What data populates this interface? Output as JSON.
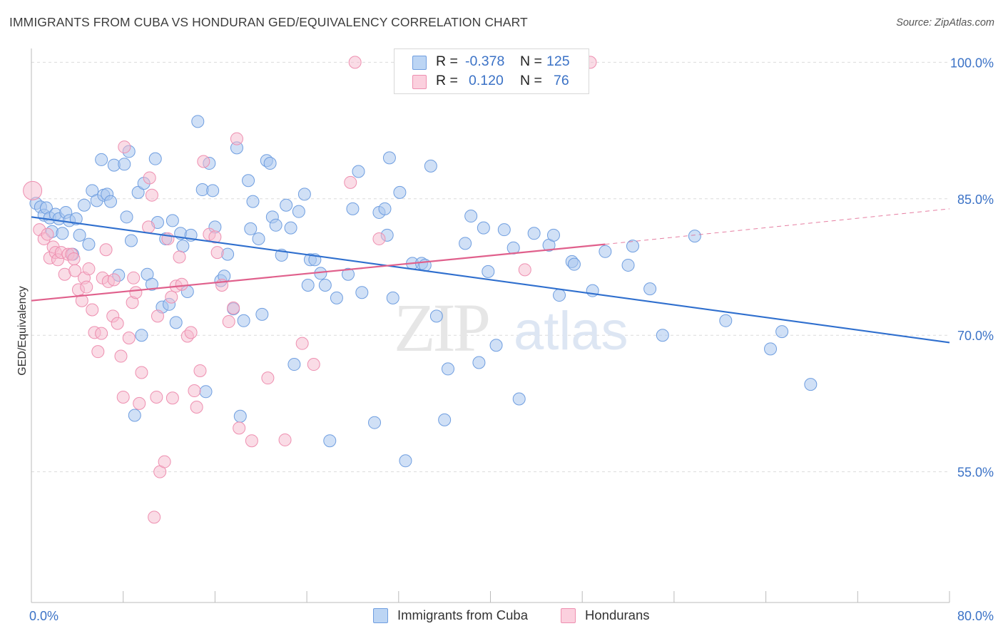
{
  "title": "IMMIGRANTS FROM CUBA VS HONDURAN GED/EQUIVALENCY CORRELATION CHART",
  "source": "Source: ZipAtlas.com",
  "watermark": {
    "zip": "ZIP",
    "atlas": "atlas"
  },
  "legend": {
    "rows": [
      {
        "r_label": "R =",
        "r_value": "-0.378",
        "n_label": "N =",
        "n_value": "125",
        "color": "#a9c7ef"
      },
      {
        "r_label": "R =",
        "r_value": "0.120",
        "n_label": "N =",
        "n_value": "76",
        "color": "#f6b9cd"
      }
    ]
  },
  "bottom_legend": [
    {
      "label": "Immigrants from Cuba",
      "color": "#a9c7ef"
    },
    {
      "label": "Hondurans",
      "color": "#f6b9cd"
    }
  ],
  "chart_data": {
    "type": "scatter",
    "title": "IMMIGRANTS FROM CUBA VS HONDURAN GED/EQUIVALENCY CORRELATION CHART",
    "xlabel": "",
    "ylabel": "GED/Equivalency",
    "xlim": [
      0,
      80
    ],
    "ylim": [
      40,
      102
    ],
    "x_tick_labels": [
      "0.0%",
      "80.0%"
    ],
    "y_ticks": [
      55,
      70,
      85,
      100
    ],
    "y_tick_labels": [
      "55.0%",
      "70.0%",
      "85.0%",
      "100.0%"
    ],
    "grid": true,
    "legend_position": "top-center",
    "colors": {
      "cuba_fill": "#a9c7ef",
      "cuba_stroke": "#6f9ee0",
      "cuba_line": "#2f6fce",
      "hond_fill": "#f6b9cd",
      "hond_stroke": "#ee8fb0",
      "hond_line": "#e0608c",
      "axis_text": "#3b72c6"
    },
    "series": [
      {
        "name": "Immigrants from Cuba",
        "trend": {
          "x0": 0,
          "y0": 83.0,
          "x1": 80,
          "y1": 69.2
        },
        "points": [
          [
            0.4,
            84.5
          ],
          [
            0.8,
            84.1
          ],
          [
            1.1,
            83.2
          ],
          [
            1.3,
            84.0
          ],
          [
            1.6,
            82.9
          ],
          [
            1.8,
            81.4
          ],
          [
            2.1,
            83.3
          ],
          [
            2.4,
            82.8
          ],
          [
            2.7,
            81.2
          ],
          [
            3.0,
            83.5
          ],
          [
            3.3,
            82.6
          ],
          [
            3.6,
            78.9
          ],
          [
            3.9,
            82.8
          ],
          [
            4.2,
            81.0
          ],
          [
            4.6,
            84.3
          ],
          [
            5.0,
            80.0
          ],
          [
            5.3,
            85.9
          ],
          [
            5.7,
            84.8
          ],
          [
            6.1,
            89.3
          ],
          [
            6.3,
            85.4
          ],
          [
            6.6,
            85.5
          ],
          [
            6.9,
            84.7
          ],
          [
            7.2,
            88.7
          ],
          [
            7.6,
            76.6
          ],
          [
            8.1,
            88.8
          ],
          [
            8.3,
            83.0
          ],
          [
            8.5,
            90.2
          ],
          [
            8.7,
            80.4
          ],
          [
            9.0,
            61.2
          ],
          [
            9.3,
            85.7
          ],
          [
            9.6,
            70.0
          ],
          [
            9.8,
            86.7
          ],
          [
            10.1,
            76.7
          ],
          [
            10.5,
            75.6
          ],
          [
            10.8,
            89.4
          ],
          [
            11.0,
            82.4
          ],
          [
            11.4,
            73.1
          ],
          [
            11.7,
            80.6
          ],
          [
            12.0,
            73.4
          ],
          [
            12.3,
            82.6
          ],
          [
            12.6,
            71.4
          ],
          [
            13.0,
            81.2
          ],
          [
            13.2,
            79.8
          ],
          [
            13.6,
            74.8
          ],
          [
            13.9,
            81.0
          ],
          [
            14.5,
            93.5
          ],
          [
            14.9,
            86.0
          ],
          [
            15.2,
            63.8
          ],
          [
            15.5,
            88.9
          ],
          [
            15.8,
            85.9
          ],
          [
            16.0,
            81.9
          ],
          [
            16.5,
            76.0
          ],
          [
            16.8,
            76.5
          ],
          [
            17.1,
            78.9
          ],
          [
            17.6,
            72.9
          ],
          [
            17.9,
            90.6
          ],
          [
            18.2,
            61.1
          ],
          [
            18.5,
            71.6
          ],
          [
            18.9,
            87.0
          ],
          [
            19.1,
            81.7
          ],
          [
            19.3,
            84.7
          ],
          [
            19.8,
            80.6
          ],
          [
            20.1,
            72.3
          ],
          [
            20.5,
            89.2
          ],
          [
            20.8,
            88.9
          ],
          [
            21.0,
            83.0
          ],
          [
            21.3,
            82.1
          ],
          [
            21.8,
            78.8
          ],
          [
            22.2,
            84.3
          ],
          [
            22.6,
            81.8
          ],
          [
            22.9,
            66.8
          ],
          [
            23.3,
            83.6
          ],
          [
            23.8,
            85.5
          ],
          [
            24.1,
            75.5
          ],
          [
            24.3,
            78.3
          ],
          [
            24.7,
            78.3
          ],
          [
            25.2,
            76.8
          ],
          [
            25.6,
            75.5
          ],
          [
            26.0,
            58.4
          ],
          [
            26.6,
            74.1
          ],
          [
            27.6,
            76.7
          ],
          [
            28.0,
            83.9
          ],
          [
            28.5,
            88.0
          ],
          [
            28.8,
            74.7
          ],
          [
            29.9,
            60.4
          ],
          [
            30.3,
            83.5
          ],
          [
            30.8,
            83.9
          ],
          [
            31.0,
            81.0
          ],
          [
            31.2,
            89.5
          ],
          [
            31.5,
            74.1
          ],
          [
            32.1,
            85.7
          ],
          [
            32.6,
            56.2
          ],
          [
            33.2,
            77.9
          ],
          [
            34.0,
            77.9
          ],
          [
            34.3,
            77.7
          ],
          [
            34.8,
            88.6
          ],
          [
            35.3,
            72.1
          ],
          [
            36.0,
            60.7
          ],
          [
            36.3,
            66.3
          ],
          [
            37.8,
            80.1
          ],
          [
            38.3,
            83.1
          ],
          [
            39.0,
            67.0
          ],
          [
            39.4,
            81.8
          ],
          [
            39.8,
            77.0
          ],
          [
            40.5,
            68.9
          ],
          [
            41.2,
            81.6
          ],
          [
            42.0,
            79.6
          ],
          [
            42.5,
            63.0
          ],
          [
            43.8,
            81.2
          ],
          [
            45.1,
            79.9
          ],
          [
            45.5,
            81.0
          ],
          [
            46.0,
            74.4
          ],
          [
            47.1,
            78.1
          ],
          [
            47.3,
            77.8
          ],
          [
            48.9,
            74.9
          ],
          [
            50.0,
            79.2
          ],
          [
            52.0,
            77.7
          ],
          [
            52.4,
            79.8
          ],
          [
            53.9,
            75.1
          ],
          [
            55.0,
            70.0
          ],
          [
            57.8,
            80.9
          ],
          [
            60.5,
            71.6
          ],
          [
            64.4,
            68.5
          ],
          [
            65.4,
            70.4
          ],
          [
            67.9,
            64.6
          ]
        ]
      },
      {
        "name": "Hondurans",
        "trend": {
          "x0": 0,
          "y0": 73.8,
          "x1": 50,
          "y1": 80.0,
          "dashed_to_x": 80,
          "dashed_to_y": 83.9
        },
        "points": [
          [
            0.1,
            85.9
          ],
          [
            0.7,
            81.6
          ],
          [
            1.1,
            80.6
          ],
          [
            1.4,
            81.1
          ],
          [
            1.6,
            78.5
          ],
          [
            1.9,
            79.7
          ],
          [
            2.1,
            79.1
          ],
          [
            2.3,
            78.3
          ],
          [
            2.6,
            79.1
          ],
          [
            2.9,
            76.7
          ],
          [
            3.2,
            78.9
          ],
          [
            3.5,
            78.9
          ],
          [
            3.7,
            78.4
          ],
          [
            3.8,
            77.1
          ],
          [
            4.1,
            75.0
          ],
          [
            4.4,
            73.8
          ],
          [
            4.6,
            76.3
          ],
          [
            4.8,
            75.3
          ],
          [
            5.0,
            77.3
          ],
          [
            5.3,
            72.8
          ],
          [
            5.5,
            70.3
          ],
          [
            5.8,
            68.2
          ],
          [
            6.1,
            70.2
          ],
          [
            6.2,
            76.3
          ],
          [
            6.5,
            79.4
          ],
          [
            6.7,
            75.9
          ],
          [
            7.1,
            72.1
          ],
          [
            7.2,
            76.1
          ],
          [
            7.5,
            71.3
          ],
          [
            7.8,
            67.7
          ],
          [
            8.0,
            63.2
          ],
          [
            8.1,
            90.7
          ],
          [
            8.5,
            69.7
          ],
          [
            8.8,
            73.6
          ],
          [
            8.9,
            76.3
          ],
          [
            9.1,
            74.7
          ],
          [
            9.4,
            62.5
          ],
          [
            9.6,
            65.9
          ],
          [
            10.2,
            81.9
          ],
          [
            10.3,
            87.3
          ],
          [
            10.5,
            85.4
          ],
          [
            10.7,
            50.0
          ],
          [
            10.9,
            63.2
          ],
          [
            11.0,
            72.1
          ],
          [
            11.2,
            55.0
          ],
          [
            11.6,
            56.1
          ],
          [
            11.9,
            80.6
          ],
          [
            12.2,
            74.2
          ],
          [
            12.3,
            63.1
          ],
          [
            12.6,
            75.4
          ],
          [
            12.9,
            78.6
          ],
          [
            13.1,
            75.6
          ],
          [
            13.6,
            69.9
          ],
          [
            13.9,
            70.3
          ],
          [
            14.2,
            63.9
          ],
          [
            14.4,
            62.1
          ],
          [
            14.7,
            66.1
          ],
          [
            15.0,
            89.1
          ],
          [
            15.5,
            81.1
          ],
          [
            16.0,
            80.8
          ],
          [
            16.2,
            79.1
          ],
          [
            16.6,
            75.5
          ],
          [
            17.2,
            71.5
          ],
          [
            17.6,
            73.0
          ],
          [
            17.9,
            91.6
          ],
          [
            18.1,
            59.8
          ],
          [
            19.2,
            58.4
          ],
          [
            20.6,
            65.3
          ],
          [
            22.1,
            58.5
          ],
          [
            23.6,
            69.1
          ],
          [
            24.6,
            66.8
          ],
          [
            27.8,
            86.8
          ],
          [
            28.2,
            100.0
          ],
          [
            30.3,
            80.6
          ],
          [
            43.0,
            77.2
          ],
          [
            48.7,
            100.0
          ]
        ]
      }
    ]
  }
}
